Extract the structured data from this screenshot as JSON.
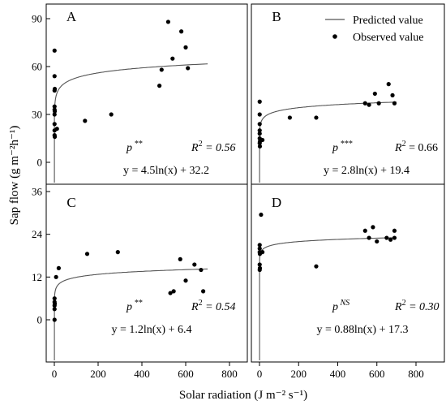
{
  "figure": {
    "ylabel": "Sap flow (g m⁻²h⁻¹)",
    "xlabel": "Solar radiation (J m⁻² s⁻¹)",
    "legend": {
      "predicted_label": "Predicted value",
      "observed_label": "Observed value"
    }
  },
  "chart_data": [
    {
      "panel": "A",
      "type": "scatter",
      "xlim": [
        0,
        800
      ],
      "ylim": [
        -8,
        95
      ],
      "yticks": [
        0,
        30,
        60,
        90
      ],
      "xticks": [
        0,
        200,
        400,
        600,
        800
      ],
      "p_label": "p",
      "p_sup": "**",
      "r2_label": "R",
      "r2_value": " = 0.56",
      "equation": "y = 4.5ln(x) + 32.2",
      "fit": {
        "a": 4.5,
        "b": 32.2
      },
      "points": [
        [
          1,
          70
        ],
        [
          1,
          54
        ],
        [
          2,
          46
        ],
        [
          1,
          45
        ],
        [
          1,
          35
        ],
        [
          1,
          33
        ],
        [
          2,
          32
        ],
        [
          1,
          30
        ],
        [
          1,
          24
        ],
        [
          1,
          20
        ],
        [
          1,
          17
        ],
        [
          2,
          16
        ],
        [
          12,
          21
        ],
        [
          140,
          26
        ],
        [
          260,
          30
        ],
        [
          480,
          48
        ],
        [
          490,
          58
        ],
        [
          520,
          88
        ],
        [
          540,
          65
        ],
        [
          580,
          82
        ],
        [
          600,
          72
        ],
        [
          610,
          59
        ]
      ]
    },
    {
      "panel": "B",
      "type": "scatter",
      "xlim": [
        0,
        800
      ],
      "ylim": [
        -8,
        95
      ],
      "yticks": [],
      "xticks": [],
      "p_label": "p",
      "p_sup": "***",
      "r2_label": "R",
      "r2_value": " = 0.66",
      "equation": "y = 2.8ln(x) + 19.4",
      "fit": {
        "a": 2.8,
        "b": 19.4
      },
      "points": [
        [
          1,
          38
        ],
        [
          1,
          30
        ],
        [
          1,
          24
        ],
        [
          1,
          20
        ],
        [
          1,
          18
        ],
        [
          1,
          15
        ],
        [
          2,
          13
        ],
        [
          1,
          12
        ],
        [
          2,
          10
        ],
        [
          15,
          14
        ],
        [
          155,
          28
        ],
        [
          290,
          28
        ],
        [
          540,
          37
        ],
        [
          560,
          36
        ],
        [
          590,
          43
        ],
        [
          610,
          37
        ],
        [
          660,
          49
        ],
        [
          680,
          42
        ],
        [
          690,
          37
        ]
      ]
    },
    {
      "panel": "C",
      "type": "scatter",
      "xlim": [
        0,
        800
      ],
      "ylim": [
        -3,
        37.5
      ],
      "yticks": [
        0,
        12,
        24,
        36
      ],
      "xticks": [
        0,
        200,
        400,
        600,
        800
      ],
      "p_label": "p",
      "p_sup": "**",
      "r2_label": "R",
      "r2_value": " = 0.54",
      "equation": "y = 1.2ln(x) + 6.4",
      "fit": {
        "a": 1.2,
        "b": 6.4
      },
      "points": [
        [
          1,
          6
        ],
        [
          1,
          5
        ],
        [
          2,
          4.5
        ],
        [
          1,
          4
        ],
        [
          1,
          3
        ],
        [
          1,
          0
        ],
        [
          8,
          12
        ],
        [
          20,
          14.5
        ],
        [
          150,
          18.5
        ],
        [
          290,
          19
        ],
        [
          530,
          7.5
        ],
        [
          545,
          8
        ],
        [
          575,
          17
        ],
        [
          600,
          11
        ],
        [
          640,
          15.5
        ],
        [
          670,
          14
        ],
        [
          680,
          8
        ]
      ]
    },
    {
      "panel": "D",
      "type": "scatter",
      "xlim": [
        0,
        800
      ],
      "ylim": [
        -3,
        37.5
      ],
      "yticks": [],
      "xticks": [
        0,
        200,
        400,
        600,
        800
      ],
      "p_label": "p",
      "p_sup": "NS",
      "r2_label": "R",
      "r2_value": " = 0.30",
      "equation": "y = 0.88ln(x) + 17.3",
      "fit": {
        "a": 0.88,
        "b": 17.3
      },
      "points": [
        [
          8,
          29.5
        ],
        [
          1,
          21
        ],
        [
          1,
          20
        ],
        [
          1,
          19
        ],
        [
          2,
          18.5
        ],
        [
          1,
          15.5
        ],
        [
          2,
          14.5
        ],
        [
          1,
          14
        ],
        [
          15,
          19
        ],
        [
          290,
          15
        ],
        [
          540,
          25
        ],
        [
          560,
          23
        ],
        [
          580,
          26
        ],
        [
          600,
          22
        ],
        [
          650,
          23
        ],
        [
          670,
          22.5
        ],
        [
          690,
          23
        ],
        [
          690,
          25
        ]
      ]
    }
  ]
}
